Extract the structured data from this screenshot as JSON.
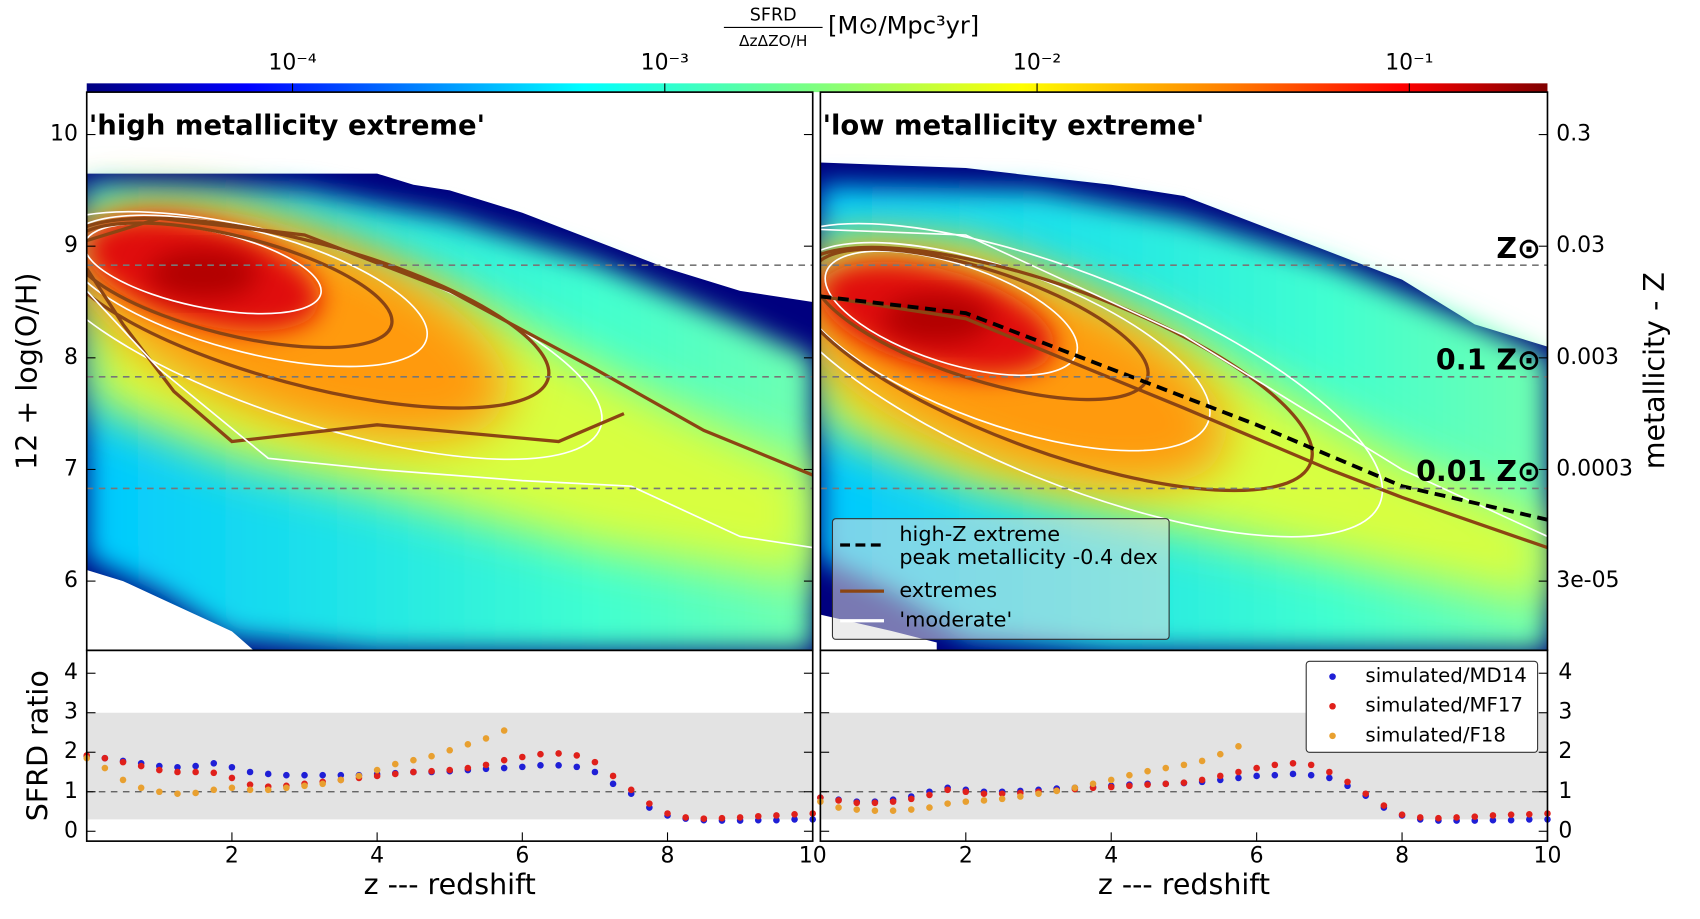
{
  "colorbar": {
    "label_numerator": "SFRD",
    "label_denominator": "ΔzΔZO/H",
    "label_unit": "[M⊙/Mpc³yr]",
    "lim": [
      2.8e-05,
      0.235
    ],
    "log": true,
    "ticks": [
      {
        "value": 0.0001,
        "label": "10⁻⁴"
      },
      {
        "value": 0.001,
        "label": "10⁻³"
      },
      {
        "value": 0.01,
        "label": "10⁻²"
      },
      {
        "value": 0.1,
        "label": "10⁻¹"
      }
    ]
  },
  "chart_data": [
    {
      "type": "heatmap",
      "title": "'high metallicity extreme'",
      "ylabel": "12 + log(O/H)",
      "xlim": [
        0,
        10
      ],
      "ylim": [
        5.38,
        10.38
      ],
      "yticks": [
        6,
        7,
        8,
        9,
        10
      ],
      "hlines": [
        8.83,
        7.83,
        6.83
      ]
    },
    {
      "type": "heatmap",
      "title": "'low metallicity extreme'",
      "y2label": "metallicity - Z",
      "xlim": [
        0,
        10
      ],
      "ylim": [
        5.38,
        10.38
      ],
      "y2lim": [
        0.72,
        7.2e-06
      ],
      "y2log": true,
      "y2ticks": [
        0.3,
        0.03,
        0.003,
        0.0003,
        {
          "value": 3e-05,
          "label": "3e-05"
        }
      ],
      "hlines": [
        {
          "value": 8.83,
          "label": "Z⊙"
        },
        {
          "value": 7.83,
          "label": "0.1 Z⊙"
        },
        {
          "value": 6.83,
          "label": "0.01 Z⊙"
        }
      ],
      "legend": [
        {
          "name": [
            "high-Z extreme",
            "peak metallicity -0.4 dex"
          ],
          "color": "#000000"
        },
        {
          "name": "extremes",
          "color": "#8b4513"
        },
        {
          "name": "'moderate'",
          "color": "#ffffff"
        }
      ]
    },
    {
      "type": "scatter",
      "xlabel": "z --- redshift",
      "ylabel": "SFRD ratio",
      "xlim": [
        0,
        10
      ],
      "ylim": [
        -0.25,
        4.58
      ],
      "xticks": [
        2,
        4,
        6,
        8,
        10
      ],
      "yticks": [
        0,
        1,
        2,
        3,
        4
      ],
      "band": [
        0.3,
        3
      ],
      "hline": 1,
      "x": [
        0,
        0.25,
        0.5,
        0.75,
        1,
        1.25,
        1.5,
        1.75,
        2,
        2.25,
        2.5,
        2.75,
        3,
        3.25,
        3.5,
        3.75,
        4,
        4.25,
        4.5,
        4.75,
        5,
        5.25,
        5.5,
        5.75,
        6,
        6.25,
        6.5,
        6.75,
        7,
        7.25,
        7.5,
        7.75,
        8,
        8.25,
        8.5,
        8.75,
        9,
        9.25,
        9.5,
        9.75,
        10
      ],
      "series": [
        {
          "name": "simulated/MD14",
          "color": "#1f1fd6",
          "values": [
            1.9,
            1.85,
            1.78,
            1.72,
            1.65,
            1.62,
            1.65,
            1.72,
            1.62,
            1.5,
            1.45,
            1.42,
            1.42,
            1.42,
            1.42,
            1.42,
            1.45,
            1.47,
            1.5,
            1.5,
            1.52,
            1.55,
            1.58,
            1.6,
            1.63,
            1.67,
            1.67,
            1.63,
            1.5,
            1.2,
            0.95,
            0.6,
            0.4,
            0.32,
            0.28,
            0.27,
            0.27,
            0.28,
            0.28,
            0.3,
            0.3
          ]
        },
        {
          "name": "simulated/MF17",
          "color": "#e0201b",
          "values": [
            1.92,
            1.85,
            1.75,
            1.65,
            1.55,
            1.5,
            1.5,
            1.48,
            1.35,
            1.18,
            1.13,
            1.15,
            1.2,
            1.25,
            1.3,
            1.35,
            1.4,
            1.45,
            1.5,
            1.52,
            1.55,
            1.6,
            1.68,
            1.8,
            1.88,
            1.95,
            1.97,
            1.92,
            1.75,
            1.4,
            1.05,
            0.7,
            0.45,
            0.35,
            0.32,
            0.33,
            0.35,
            0.38,
            0.4,
            0.43,
            0.45
          ]
        },
        {
          "name": "simulated/F18",
          "color": "#e8a030",
          "values": [
            1.85,
            1.6,
            1.3,
            1.1,
            1.0,
            0.95,
            0.97,
            1.05,
            1.1,
            1.05,
            1.05,
            1.1,
            1.15,
            1.2,
            1.3,
            1.4,
            1.55,
            1.7,
            1.8,
            1.9,
            2.05,
            2.2,
            2.35,
            2.55,
            null,
            null,
            null,
            null,
            null,
            null,
            null,
            null,
            null,
            null,
            null,
            null,
            null,
            null,
            null,
            null,
            null
          ]
        }
      ]
    },
    {
      "type": "scatter",
      "xlabel": "z --- redshift",
      "xlim": [
        0,
        10
      ],
      "ylim": [
        -0.25,
        4.58
      ],
      "xticks": [
        2,
        4,
        6,
        8,
        10
      ],
      "yticks": [
        0,
        1,
        2,
        3,
        4
      ],
      "ytick_side": "right",
      "legend": "upper right",
      "band": [
        0.3,
        3
      ],
      "hline": 1,
      "x": [
        0,
        0.25,
        0.5,
        0.75,
        1,
        1.25,
        1.5,
        1.75,
        2,
        2.25,
        2.5,
        2.75,
        3,
        3.25,
        3.5,
        3.75,
        4,
        4.25,
        4.5,
        4.75,
        5,
        5.25,
        5.5,
        5.75,
        6,
        6.25,
        6.5,
        6.75,
        7,
        7.25,
        7.5,
        7.75,
        8,
        8.25,
        8.5,
        8.75,
        9,
        9.25,
        9.5,
        9.75,
        10
      ],
      "series": [
        {
          "name": "simulated/MD14",
          "color": "#1f1fd6",
          "values": [
            0.85,
            0.8,
            0.75,
            0.75,
            0.8,
            0.88,
            1.0,
            1.1,
            1.05,
            1.0,
            1.0,
            1.02,
            1.05,
            1.08,
            1.1,
            1.12,
            1.15,
            1.18,
            1.2,
            1.2,
            1.22,
            1.25,
            1.3,
            1.35,
            1.4,
            1.42,
            1.45,
            1.42,
            1.35,
            1.15,
            0.9,
            0.6,
            0.4,
            0.3,
            0.27,
            0.27,
            0.27,
            0.28,
            0.28,
            0.3,
            0.3
          ]
        },
        {
          "name": "simulated/MF17",
          "color": "#e0201b",
          "values": [
            0.85,
            0.78,
            0.72,
            0.72,
            0.75,
            0.82,
            0.92,
            1.05,
            1.0,
            0.95,
            0.95,
            0.97,
            1.0,
            1.03,
            1.07,
            1.1,
            1.12,
            1.15,
            1.18,
            1.2,
            1.23,
            1.3,
            1.4,
            1.5,
            1.6,
            1.68,
            1.72,
            1.68,
            1.5,
            1.25,
            0.95,
            0.65,
            0.42,
            0.35,
            0.33,
            0.35,
            0.37,
            0.4,
            0.42,
            0.43,
            0.45
          ]
        },
        {
          "name": "simulated/F18",
          "color": "#e8a030",
          "values": [
            0.75,
            0.6,
            0.55,
            0.52,
            0.52,
            0.55,
            0.6,
            0.7,
            0.75,
            0.78,
            0.82,
            0.88,
            0.95,
            1.02,
            1.1,
            1.2,
            1.3,
            1.42,
            1.52,
            1.6,
            1.68,
            1.78,
            1.95,
            2.15,
            null,
            null,
            null,
            null,
            null,
            null,
            null,
            null,
            null,
            null,
            null,
            null,
            null,
            null,
            null,
            null,
            null
          ]
        }
      ]
    }
  ]
}
